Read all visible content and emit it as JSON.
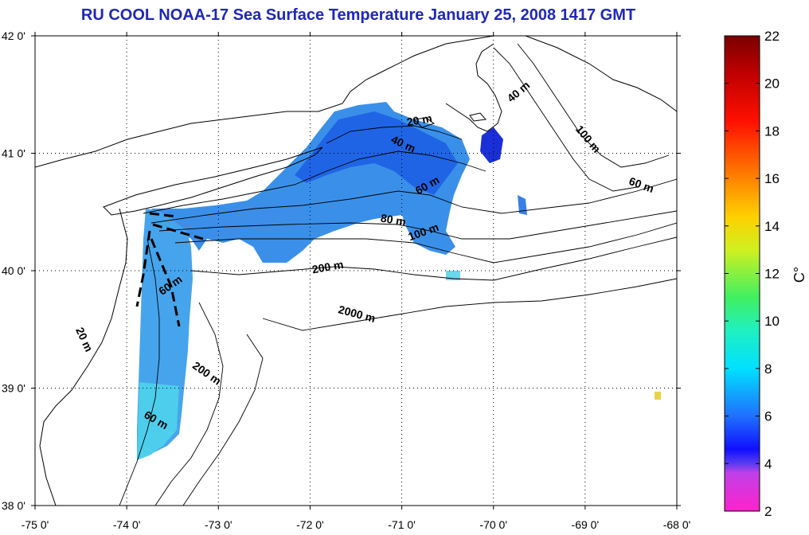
{
  "title": "RU COOL  NOAA-17 Sea Surface Temperature January 25, 2008 1417 GMT",
  "map": {
    "lon_range": [
      -75,
      -68
    ],
    "lat_range": [
      38,
      42
    ],
    "x_ticks": [
      "-75 0'",
      "-74 0'",
      "-73 0'",
      "-72 0'",
      "-71 0'",
      "-70 0'",
      "-69 0'",
      "-68 0'"
    ],
    "y_ticks": [
      "42 0'",
      "41 0'",
      "40 0'",
      "39 0'",
      "38 0'"
    ],
    "grid": "dotted",
    "depth_labels": [
      {
        "text": "40 m",
        "lon": -69.7,
        "lat": 41.5,
        "angle": 40
      },
      {
        "text": "100 m",
        "lon": -69.0,
        "lat": 41.1,
        "angle": -50
      },
      {
        "text": "20 m",
        "lon": -70.8,
        "lat": 41.25,
        "angle": 10
      },
      {
        "text": "40 m",
        "lon": -71.0,
        "lat": 41.05,
        "angle": -25
      },
      {
        "text": "60 m",
        "lon": -70.7,
        "lat": 40.7,
        "angle": 30
      },
      {
        "text": "60 m",
        "lon": -68.4,
        "lat": 40.7,
        "angle": -20
      },
      {
        "text": "80 m",
        "lon": -71.1,
        "lat": 40.4,
        "angle": -10
      },
      {
        "text": "100 m",
        "lon": -70.75,
        "lat": 40.3,
        "angle": 20
      },
      {
        "text": "200 m",
        "lon": -71.8,
        "lat": 40.0,
        "angle": 10
      },
      {
        "text": "60 m",
        "lon": -73.5,
        "lat": 39.85,
        "angle": 35
      },
      {
        "text": "2000 m",
        "lon": -71.5,
        "lat": 39.6,
        "angle": -15
      },
      {
        "text": "20 m",
        "lon": -74.5,
        "lat": 39.4,
        "angle": -65
      },
      {
        "text": "200 m",
        "lon": -73.15,
        "lat": 39.1,
        "angle": -35
      },
      {
        "text": "60 m",
        "lon": -73.7,
        "lat": 38.7,
        "angle": -30
      }
    ]
  },
  "colorbar": {
    "min": 2,
    "max": 22,
    "ticks": [
      "22",
      "20",
      "18",
      "16",
      "14",
      "12",
      "10",
      "8",
      "6",
      "4",
      "2"
    ],
    "unit": "C°"
  }
}
